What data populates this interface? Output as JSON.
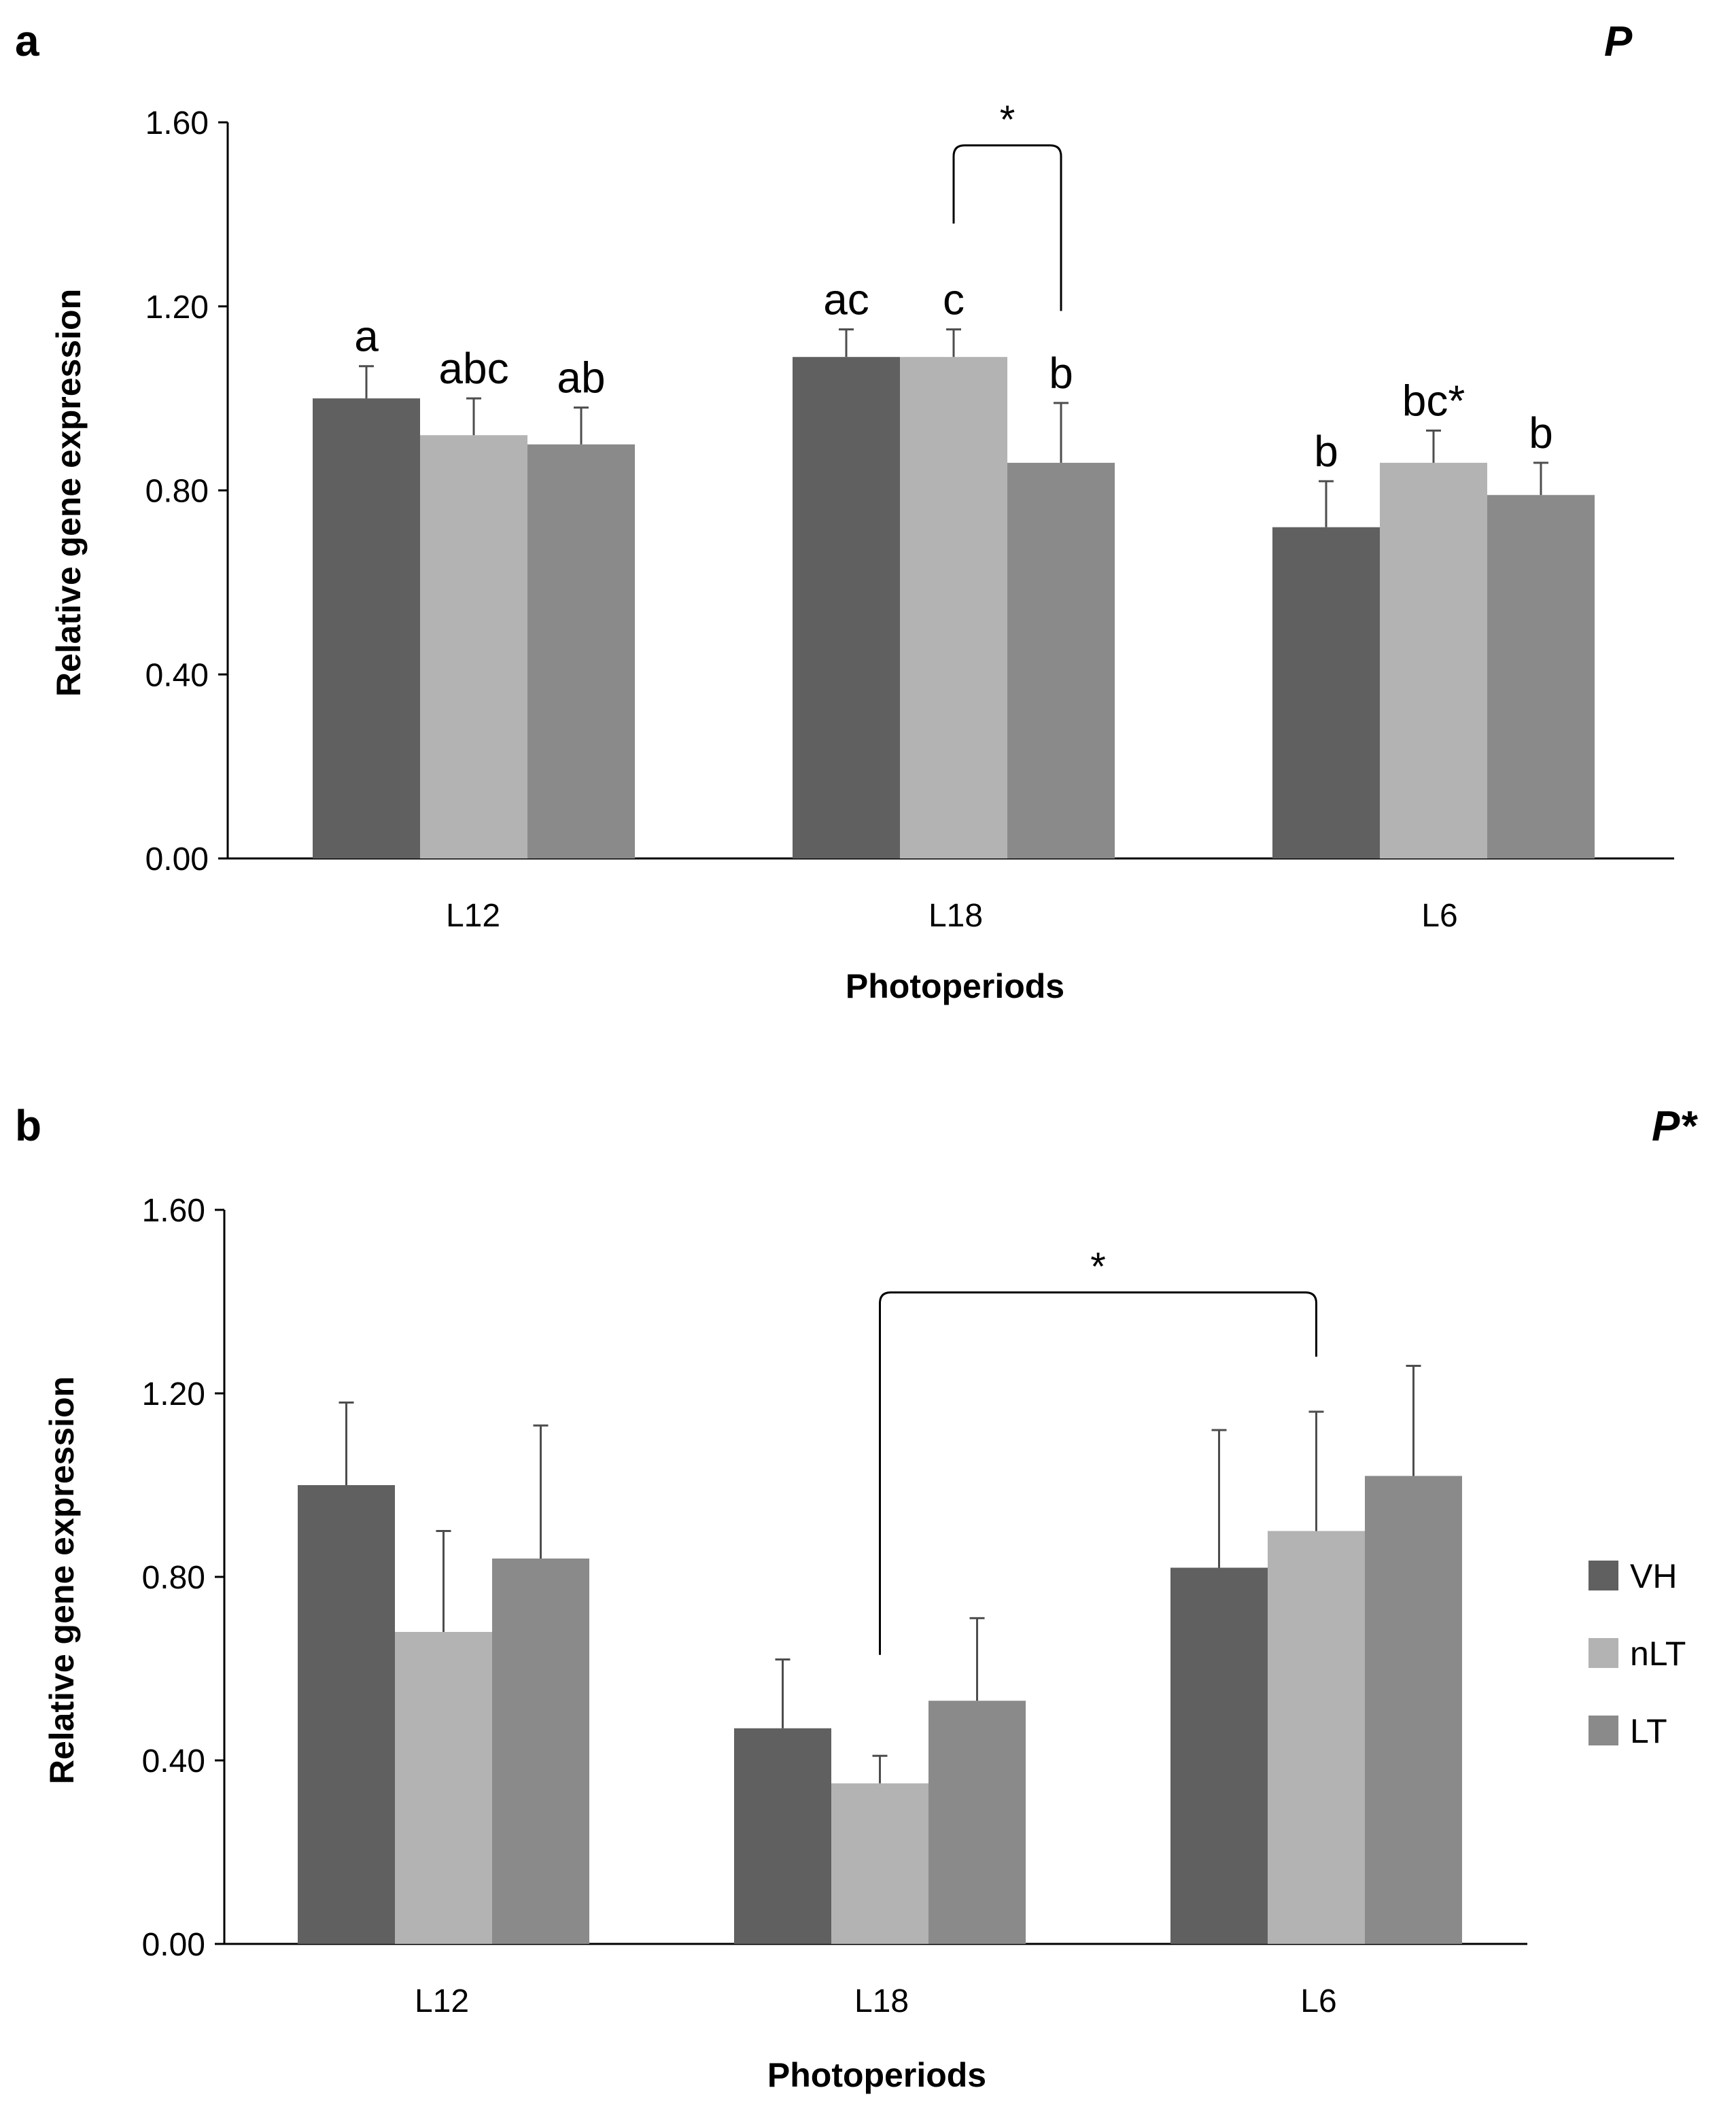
{
  "colors": {
    "VH": "#606060",
    "nLT": "#b3b3b3",
    "LT": "#8a8a8a",
    "axis": "#000000",
    "error": "#4d4d4d"
  },
  "legend": {
    "placement": "right",
    "items": [
      "VH",
      "nLT",
      "LT"
    ]
  },
  "chart_data": [
    {
      "panel": "a",
      "gene": "P",
      "type": "bar",
      "categories": [
        "L12",
        "L18",
        "L6"
      ],
      "series": [
        {
          "name": "VH",
          "values": [
            1.0,
            1.09,
            0.72
          ],
          "errors": [
            0.07,
            0.06,
            0.1
          ]
        },
        {
          "name": "nLT",
          "values": [
            0.92,
            1.09,
            0.86
          ],
          "errors": [
            0.08,
            0.06,
            0.07
          ]
        },
        {
          "name": "LT",
          "values": [
            0.9,
            0.86,
            0.79
          ],
          "errors": [
            0.08,
            0.13,
            0.07
          ]
        }
      ],
      "significance_letters": [
        [
          "a",
          "abc",
          "ab"
        ],
        [
          "ac",
          "c",
          "b"
        ],
        [
          "b",
          "bc*",
          "b"
        ]
      ],
      "brackets": [
        {
          "from": [
            1,
            1
          ],
          "to": [
            1,
            2
          ],
          "label": "*"
        }
      ],
      "xlabel": "Photoperiods",
      "ylabel": "Relative gene expression",
      "ylim": [
        0,
        1.6
      ],
      "yticks": [
        "0.00",
        "0.40",
        "0.80",
        "1.20",
        "1.60"
      ],
      "grid": false
    },
    {
      "panel": "b",
      "gene": "P*",
      "type": "bar",
      "categories": [
        "L12",
        "L18",
        "L6"
      ],
      "series": [
        {
          "name": "VH",
          "values": [
            1.0,
            0.47,
            0.82
          ],
          "errors": [
            0.18,
            0.15,
            0.3
          ]
        },
        {
          "name": "nLT",
          "values": [
            0.68,
            0.35,
            0.9
          ],
          "errors": [
            0.22,
            0.06,
            0.26
          ]
        },
        {
          "name": "LT",
          "values": [
            0.84,
            0.53,
            1.02
          ],
          "errors": [
            0.29,
            0.18,
            0.24
          ]
        }
      ],
      "brackets": [
        {
          "from": [
            1,
            1
          ],
          "to": [
            2,
            1
          ],
          "label": "*"
        }
      ],
      "xlabel": "Photoperiods",
      "ylabel": "Relative gene expression",
      "ylim": [
        0,
        1.6
      ],
      "yticks": [
        "0.00",
        "0.40",
        "0.80",
        "1.20",
        "1.60"
      ],
      "grid": false
    }
  ]
}
